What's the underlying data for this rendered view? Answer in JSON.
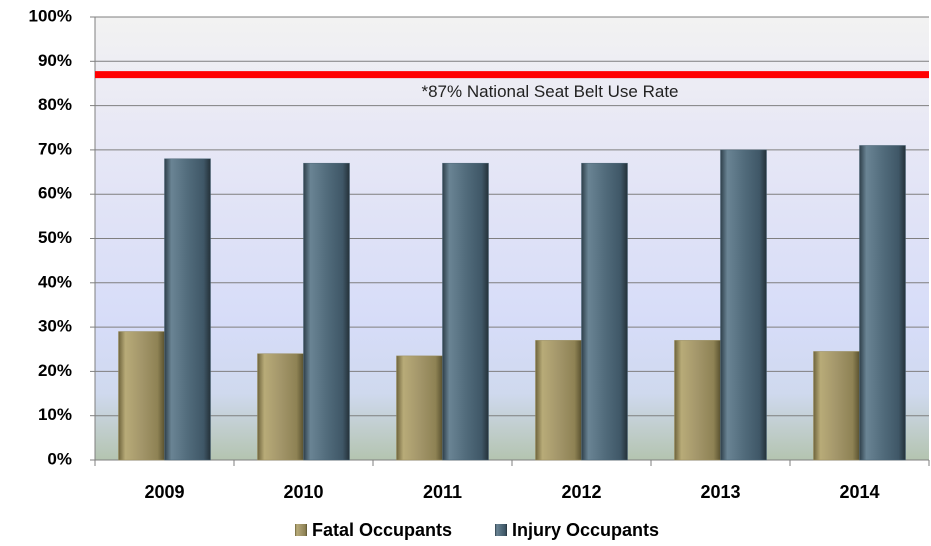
{
  "chart_data": {
    "type": "bar",
    "categories": [
      "2009",
      "2010",
      "2011",
      "2012",
      "2013",
      "2014"
    ],
    "series": [
      {
        "name": "Fatal Occupants",
        "color": "#9a8d5c",
        "values": [
          29,
          24,
          23.5,
          27,
          27,
          24.5
        ]
      },
      {
        "name": "Injury Occupants",
        "color": "#4b6576",
        "values": [
          68,
          67,
          67,
          67,
          70,
          71
        ]
      }
    ],
    "ylim": [
      0,
      100
    ],
    "yticks": [
      {
        "value": 0,
        "label": "0%"
      },
      {
        "value": 10,
        "label": "10%"
      },
      {
        "value": 20,
        "label": "20%"
      },
      {
        "value": 30,
        "label": "30%"
      },
      {
        "value": 40,
        "label": "40%"
      },
      {
        "value": 50,
        "label": "50%"
      },
      {
        "value": 60,
        "label": "60%"
      },
      {
        "value": 70,
        "label": "70%"
      },
      {
        "value": 80,
        "label": "80%"
      },
      {
        "value": 90,
        "label": "90%"
      },
      {
        "value": 100,
        "label": "100%"
      }
    ],
    "grid": true,
    "reference_line": {
      "value": 87,
      "label": "*87% National Seat Belt Use Rate",
      "color": "#ff0000"
    },
    "legend": "bottom"
  }
}
